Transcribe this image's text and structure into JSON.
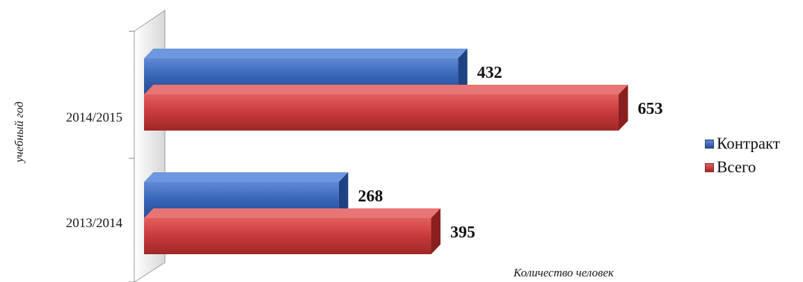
{
  "chart_data": {
    "type": "bar",
    "orientation": "horizontal",
    "categories": [
      "2013/2014",
      "2014/2015"
    ],
    "series": [
      {
        "name": "Контракт",
        "values": [
          268,
          432
        ],
        "color": "#3b66b8"
      },
      {
        "name": "Всего",
        "values": [
          395,
          653
        ],
        "color": "#c83a3a"
      }
    ],
    "xlabel": "Количество человек",
    "ylabel": "учебный год",
    "xlim": [
      0,
      700
    ],
    "legend": "right",
    "grid": false,
    "style": "3d"
  }
}
